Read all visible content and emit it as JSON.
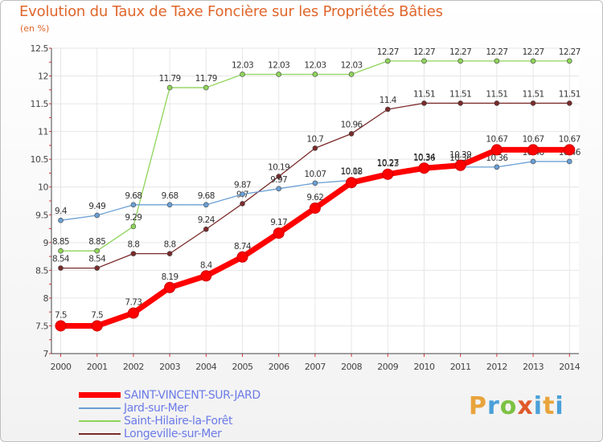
{
  "header": {
    "title": "Evolution du Taux de Taxe Foncière sur les Propriétés Bâties",
    "unit": "(en %)"
  },
  "logo": {
    "letters": [
      "P",
      "r",
      "o",
      "x",
      "i",
      "t",
      "i"
    ]
  },
  "chart_data": {
    "type": "line",
    "title": "Evolution du Taux de Taxe Foncière sur les Propriétés Bâties",
    "ylabel": "(en %)",
    "xlabel": "",
    "categories": [
      "2000",
      "2001",
      "2002",
      "2003",
      "2004",
      "2005",
      "2006",
      "2007",
      "2008",
      "2009",
      "2010",
      "2011",
      "2012",
      "2013",
      "2014"
    ],
    "ylim": [
      7,
      12.5
    ],
    "yticks": [
      7,
      7.5,
      8,
      8.5,
      9,
      9.5,
      10,
      10.5,
      11,
      11.5,
      12,
      12.5
    ],
    "ytick_labels": [
      "7",
      "7.5",
      "8",
      "8.5",
      "9",
      "9.5",
      "10",
      "10.5",
      "11",
      "11.5",
      "12",
      "12.5"
    ],
    "grid": true,
    "legend_position": "bottom-left",
    "series": [
      {
        "name": "Longeville-sur-Mer",
        "color": "#7a2a2a",
        "values": [
          8.54,
          8.54,
          8.8,
          8.8,
          9.24,
          9.7,
          10.19,
          10.7,
          10.96,
          11.4,
          11.51,
          11.51,
          11.51,
          11.51,
          11.51
        ],
        "labels": [
          "8.54",
          "8.54",
          "8.8",
          "8.8",
          "9.24",
          "9.7",
          "10.19",
          "10.7",
          "10.96",
          "11.4",
          "11.51",
          "11.51",
          "11.51",
          "11.51",
          "11.51"
        ]
      },
      {
        "name": "Saint-Hilaire-la-Forêt",
        "color": "#8fd45a",
        "values": [
          8.85,
          8.85,
          9.29,
          11.79,
          11.79,
          12.03,
          12.03,
          12.03,
          12.03,
          12.27,
          12.27,
          12.27,
          12.27,
          12.27,
          12.27
        ],
        "labels": [
          "8.85",
          "8.85",
          "9.29",
          "11.79",
          "11.79",
          "12.03",
          "12.03",
          "12.03",
          "12.03",
          "12.27",
          "12.27",
          "12.27",
          "12.27",
          "12.27",
          "12.27"
        ]
      },
      {
        "name": "Jard-sur-Mer",
        "color": "#6a9fd4",
        "values": [
          9.4,
          9.49,
          9.68,
          9.68,
          9.68,
          9.87,
          9.97,
          10.07,
          10.12,
          10.27,
          10.36,
          10.36,
          10.36,
          10.46,
          10.46
        ],
        "labels": [
          "9.4",
          "9.49",
          "9.68",
          "9.68",
          "9.68",
          "9.87",
          "9.97",
          "10.07",
          "10.12",
          "10.27",
          "10.36",
          "10.36",
          "10.36",
          "10.46",
          "10.46"
        ]
      },
      {
        "name": "SAINT-VINCENT-SUR-JARD",
        "color": "#ff0000",
        "values": [
          7.5,
          7.5,
          7.73,
          8.19,
          8.4,
          8.74,
          9.17,
          9.62,
          10.08,
          10.23,
          10.34,
          10.39,
          10.67,
          10.67,
          10.67
        ],
        "labels": [
          "7.5",
          "7.5",
          "7.73",
          "8.19",
          "8.4",
          "8.74",
          "9.17",
          "9.62",
          "10.08",
          "10.23",
          "10.34",
          "10.39",
          "10.67",
          "10.67",
          "10.67"
        ]
      }
    ],
    "legend": [
      "SAINT-VINCENT-SUR-JARD",
      "Jard-sur-Mer",
      "Saint-Hilaire-la-Forêt",
      "Longeville-sur-Mer"
    ]
  }
}
